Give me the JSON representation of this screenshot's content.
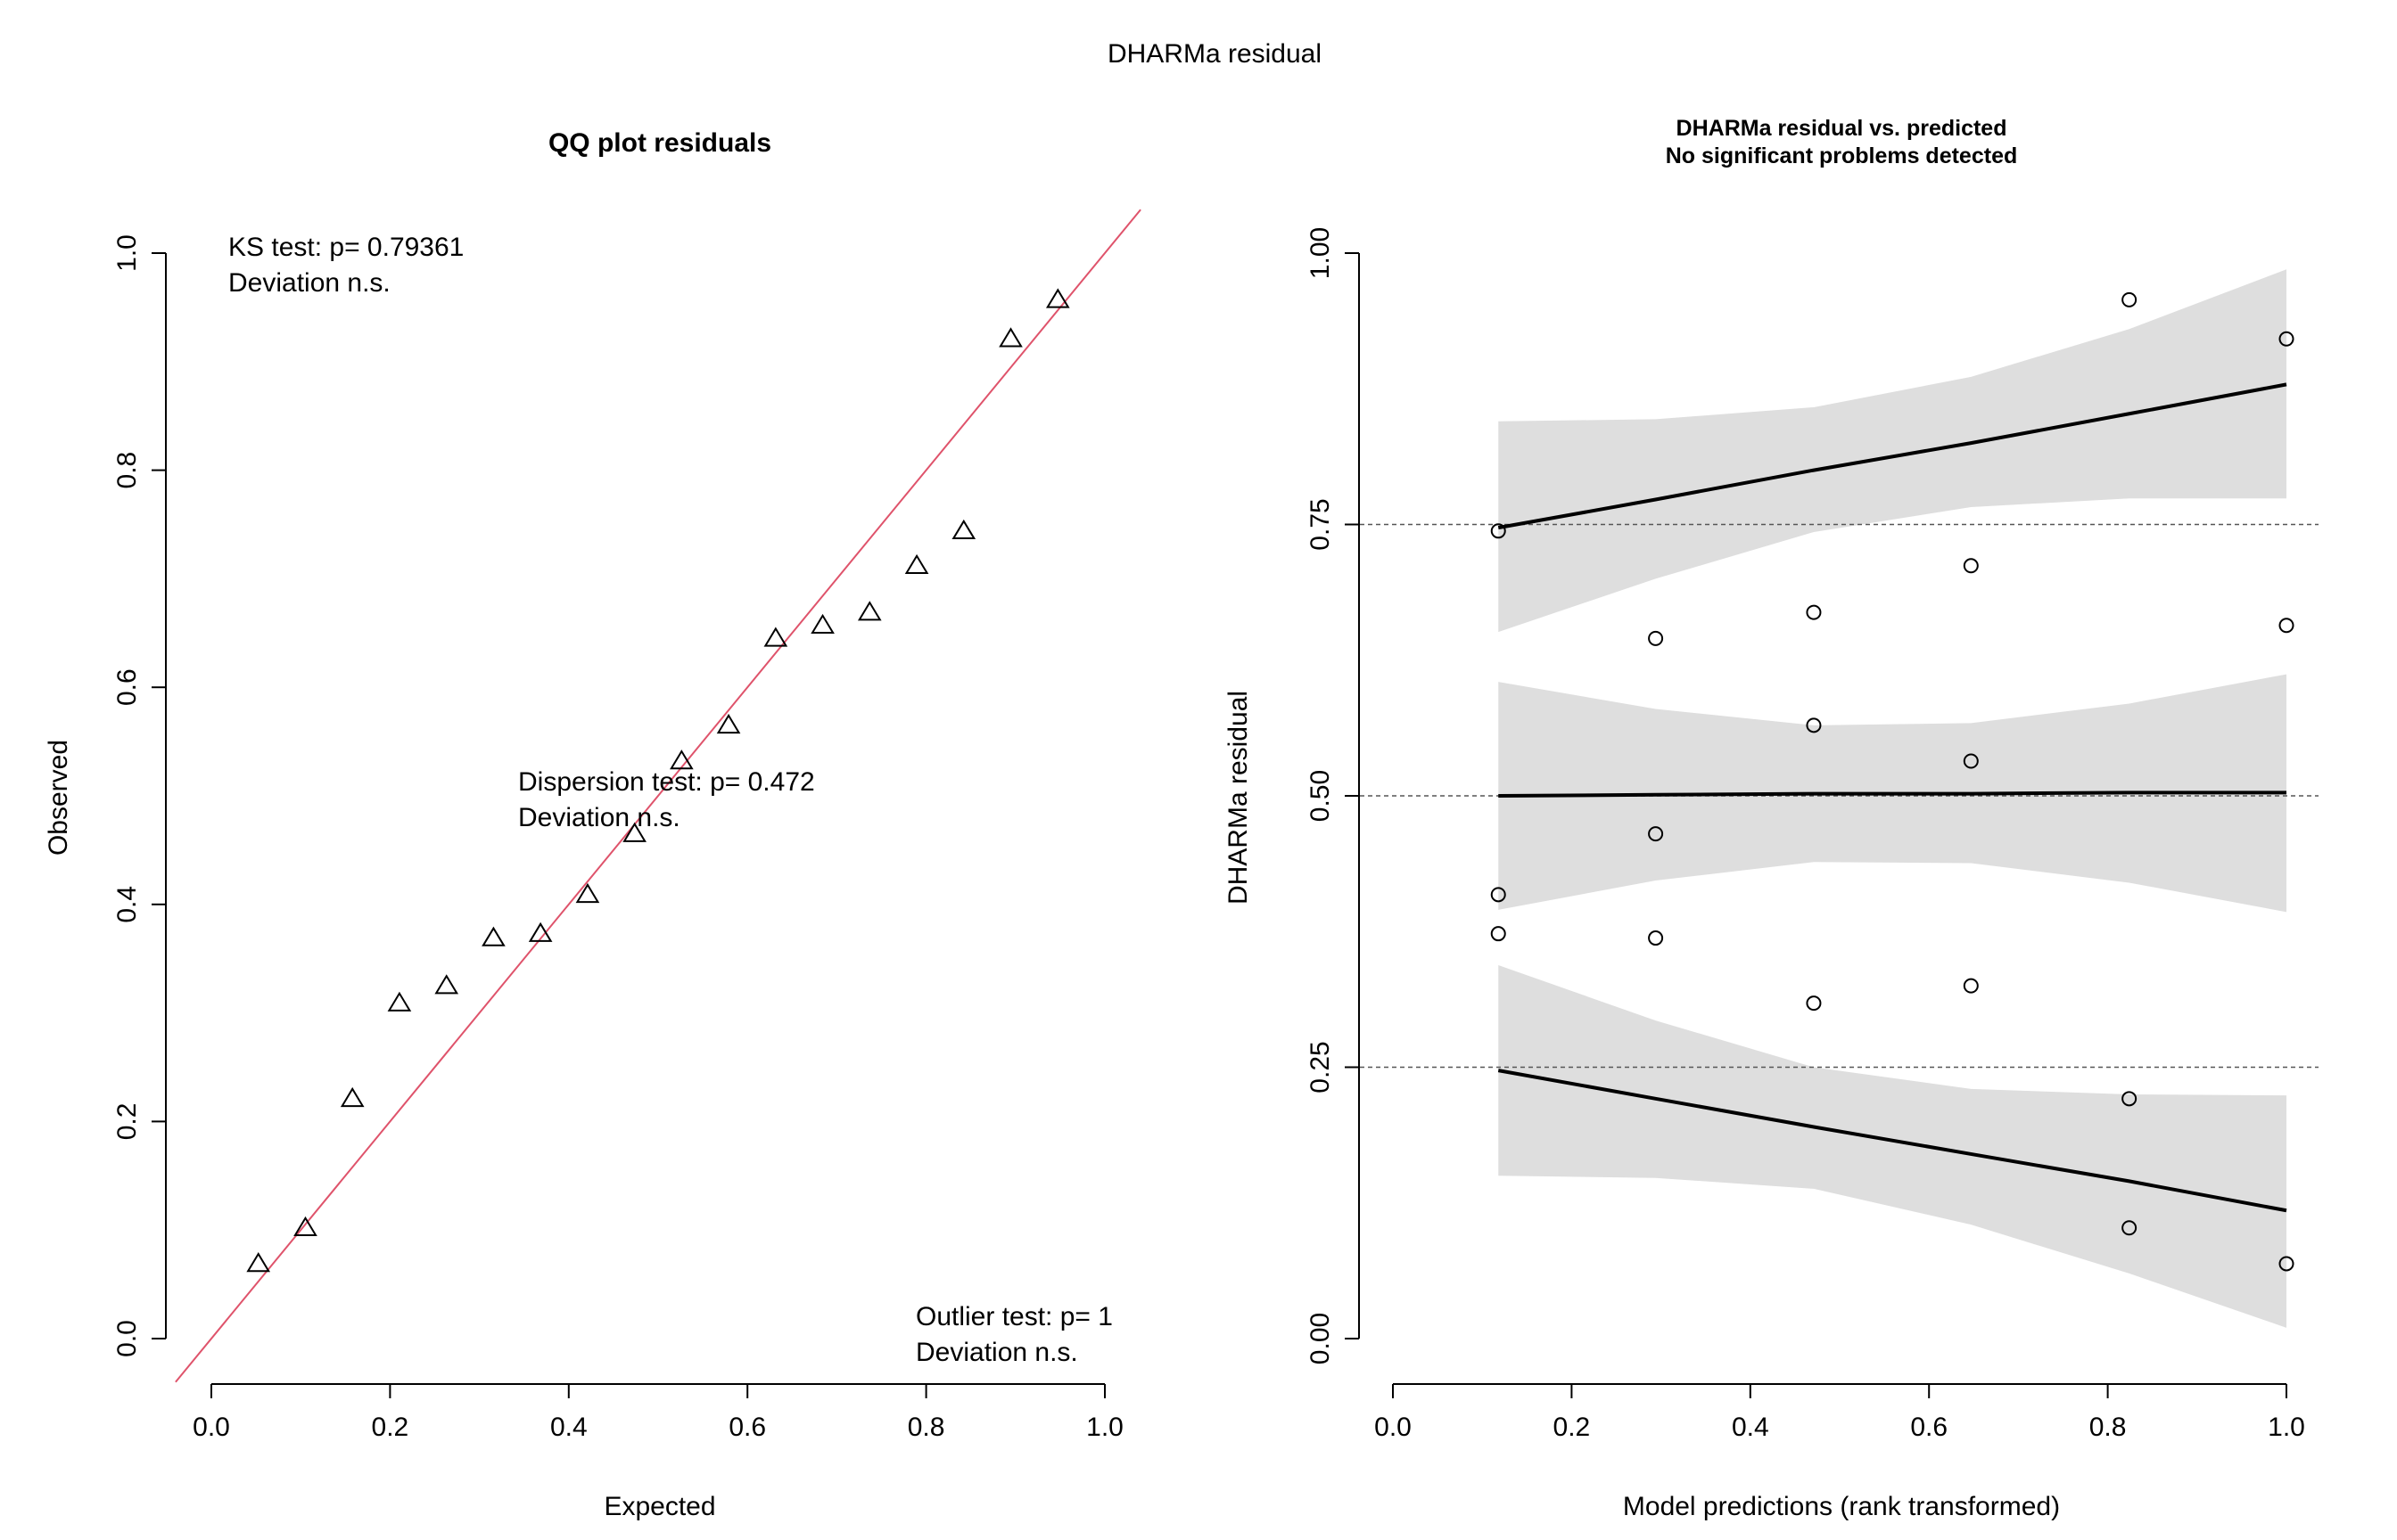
{
  "page_title": "DHARMa residual",
  "colors": {
    "identity_line": "#df536b",
    "band_fill": "#dedede",
    "ink": "#000000",
    "dashed_line": "#555555"
  },
  "chart_data": [
    {
      "type": "scatter",
      "title": "QQ plot residuals",
      "xlabel": "Expected",
      "ylabel": "Observed",
      "xlim": [
        0.0,
        1.0
      ],
      "ylim": [
        0.0,
        1.0
      ],
      "x_ticks": [
        "0.0",
        "0.2",
        "0.4",
        "0.6",
        "0.8",
        "1.0"
      ],
      "y_ticks": [
        "0.0",
        "0.2",
        "0.4",
        "0.6",
        "0.8",
        "1.0"
      ],
      "marker": "triangle",
      "grid": false,
      "reference_line": {
        "intercept": 0,
        "slope": 1
      },
      "points": {
        "x": [
          0.0526,
          0.1053,
          0.1579,
          0.2105,
          0.2632,
          0.3158,
          0.3684,
          0.4211,
          0.4737,
          0.5263,
          0.5789,
          0.6316,
          0.6842,
          0.7368,
          0.7895,
          0.8421,
          0.8947,
          0.9474
        ],
        "y": [
          0.069,
          0.102,
          0.221,
          0.309,
          0.325,
          0.369,
          0.373,
          0.409,
          0.465,
          0.532,
          0.565,
          0.645,
          0.657,
          0.669,
          0.712,
          0.744,
          0.921,
          0.957
        ]
      },
      "annotations": [
        {
          "id": "ks",
          "lines": [
            "KS test: p= 0.79361",
            "Deviation  n.s."
          ]
        },
        {
          "id": "dispersion",
          "lines": [
            "Dispersion test: p= 0.472",
            "Deviation  n.s."
          ]
        },
        {
          "id": "outlier",
          "lines": [
            "Outlier test: p= 1",
            "Deviation  n.s."
          ]
        }
      ]
    },
    {
      "type": "scatter",
      "title": "DHARMa residual vs. predicted",
      "subtitle": "No significant problems detected",
      "xlabel": "Model predictions (rank transformed)",
      "ylabel": "DHARMa residual",
      "xlim": [
        0.0,
        1.0
      ],
      "ylim": [
        0.0,
        1.0
      ],
      "x_ticks": [
        "0.0",
        "0.2",
        "0.4",
        "0.6",
        "0.8",
        "1.0"
      ],
      "y_ticks": [
        "0.00",
        "0.25",
        "0.50",
        "0.75",
        "1.00"
      ],
      "marker": "circle",
      "grid": false,
      "reference_lines": [
        0.25,
        0.5,
        0.75
      ],
      "points": {
        "x": [
          0.118,
          0.118,
          0.118,
          0.294,
          0.294,
          0.294,
          0.471,
          0.471,
          0.471,
          0.647,
          0.647,
          0.647,
          0.824,
          0.824,
          0.824,
          1.0,
          1.0,
          1.0
        ],
        "y": [
          0.744,
          0.409,
          0.373,
          0.645,
          0.465,
          0.369,
          0.669,
          0.565,
          0.309,
          0.712,
          0.532,
          0.325,
          0.957,
          0.221,
          0.102,
          0.921,
          0.657,
          0.069
        ]
      },
      "quantile_fits": [
        {
          "quantile": 0.25,
          "x": [
            0.118,
            0.294,
            0.471,
            0.647,
            0.824,
            1.0
          ],
          "fit": [
            0.247,
            0.221,
            0.195,
            0.17,
            0.145,
            0.118
          ],
          "lower": [
            0.15,
            0.148,
            0.138,
            0.105,
            0.06,
            0.01
          ],
          "upper": [
            0.344,
            0.293,
            0.25,
            0.23,
            0.225,
            0.224
          ]
        },
        {
          "quantile": 0.5,
          "x": [
            0.118,
            0.294,
            0.471,
            0.647,
            0.824,
            1.0
          ],
          "fit": [
            0.5,
            0.501,
            0.502,
            0.502,
            0.503,
            0.503
          ],
          "lower": [
            0.395,
            0.422,
            0.439,
            0.438,
            0.42,
            0.393
          ],
          "upper": [
            0.605,
            0.58,
            0.565,
            0.567,
            0.585,
            0.612
          ]
        },
        {
          "quantile": 0.75,
          "x": [
            0.118,
            0.294,
            0.471,
            0.647,
            0.824,
            1.0
          ],
          "fit": [
            0.747,
            0.773,
            0.8,
            0.825,
            0.852,
            0.879
          ],
          "lower": [
            0.651,
            0.7,
            0.743,
            0.766,
            0.774,
            0.774
          ],
          "upper": [
            0.845,
            0.847,
            0.858,
            0.886,
            0.93,
            0.985
          ]
        }
      ]
    }
  ]
}
